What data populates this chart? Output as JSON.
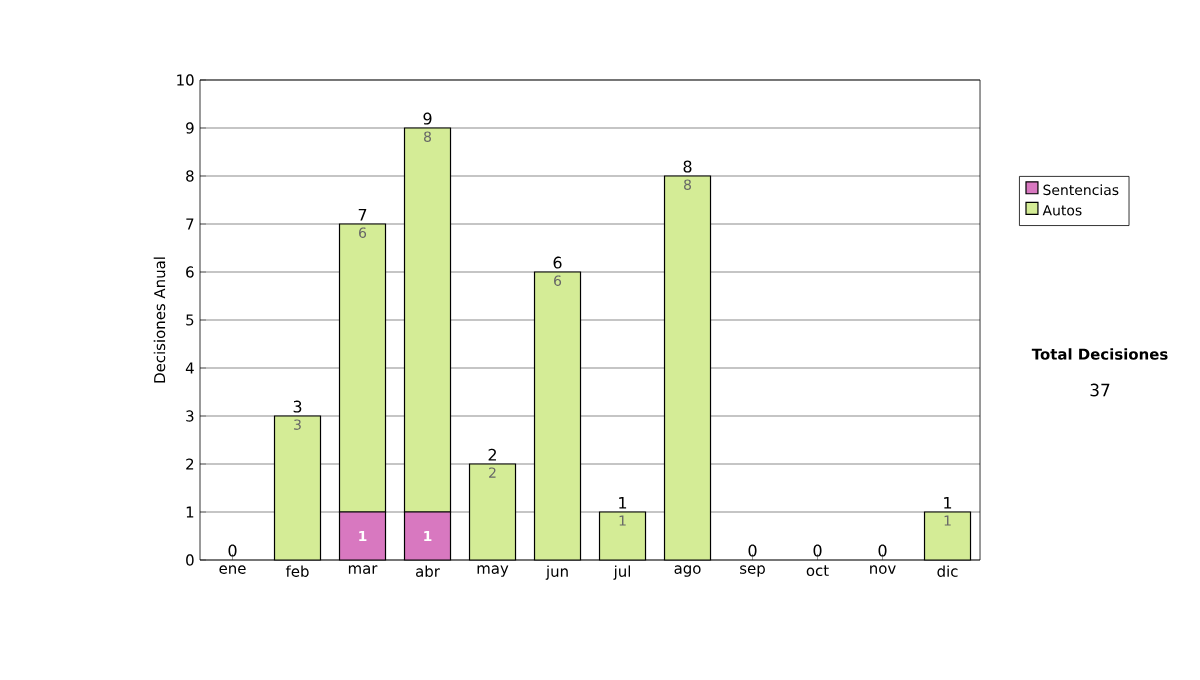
{
  "chart_data": {
    "type": "bar",
    "stacked": true,
    "ylabel": "Decisiones Anual",
    "categories": [
      "ene",
      "feb",
      "mar",
      "abr",
      "may",
      "jun",
      "jul",
      "ago",
      "sep",
      "oct",
      "nov",
      "dic"
    ],
    "series": [
      {
        "name": "Sentencias",
        "color": "#d878c0",
        "values": [
          0,
          0,
          1,
          1,
          0,
          0,
          0,
          0,
          0,
          0,
          0,
          0
        ],
        "value_labels": [
          null,
          null,
          "1",
          "1",
          null,
          null,
          null,
          null,
          null,
          null,
          null,
          null
        ]
      },
      {
        "name": "Autos",
        "color": "#d4ec96",
        "values": [
          0,
          3,
          6,
          8,
          2,
          6,
          1,
          8,
          0,
          0,
          0,
          1
        ],
        "value_labels": [
          null,
          "3",
          "6",
          "8",
          "2",
          "6",
          "1",
          "8",
          null,
          null,
          null,
          "1"
        ]
      }
    ],
    "totals": [
      "0",
      "3",
      "7",
      "9",
      "2",
      "6",
      "1",
      "8",
      "0",
      "0",
      "0",
      "1"
    ],
    "ylim": [
      0,
      10
    ],
    "yticks": [
      0,
      1,
      2,
      3,
      4,
      5,
      6,
      7,
      8,
      9,
      10
    ],
    "grid": "y",
    "legend": "right",
    "annotations": [
      "Total Decisiones",
      "37"
    ]
  }
}
